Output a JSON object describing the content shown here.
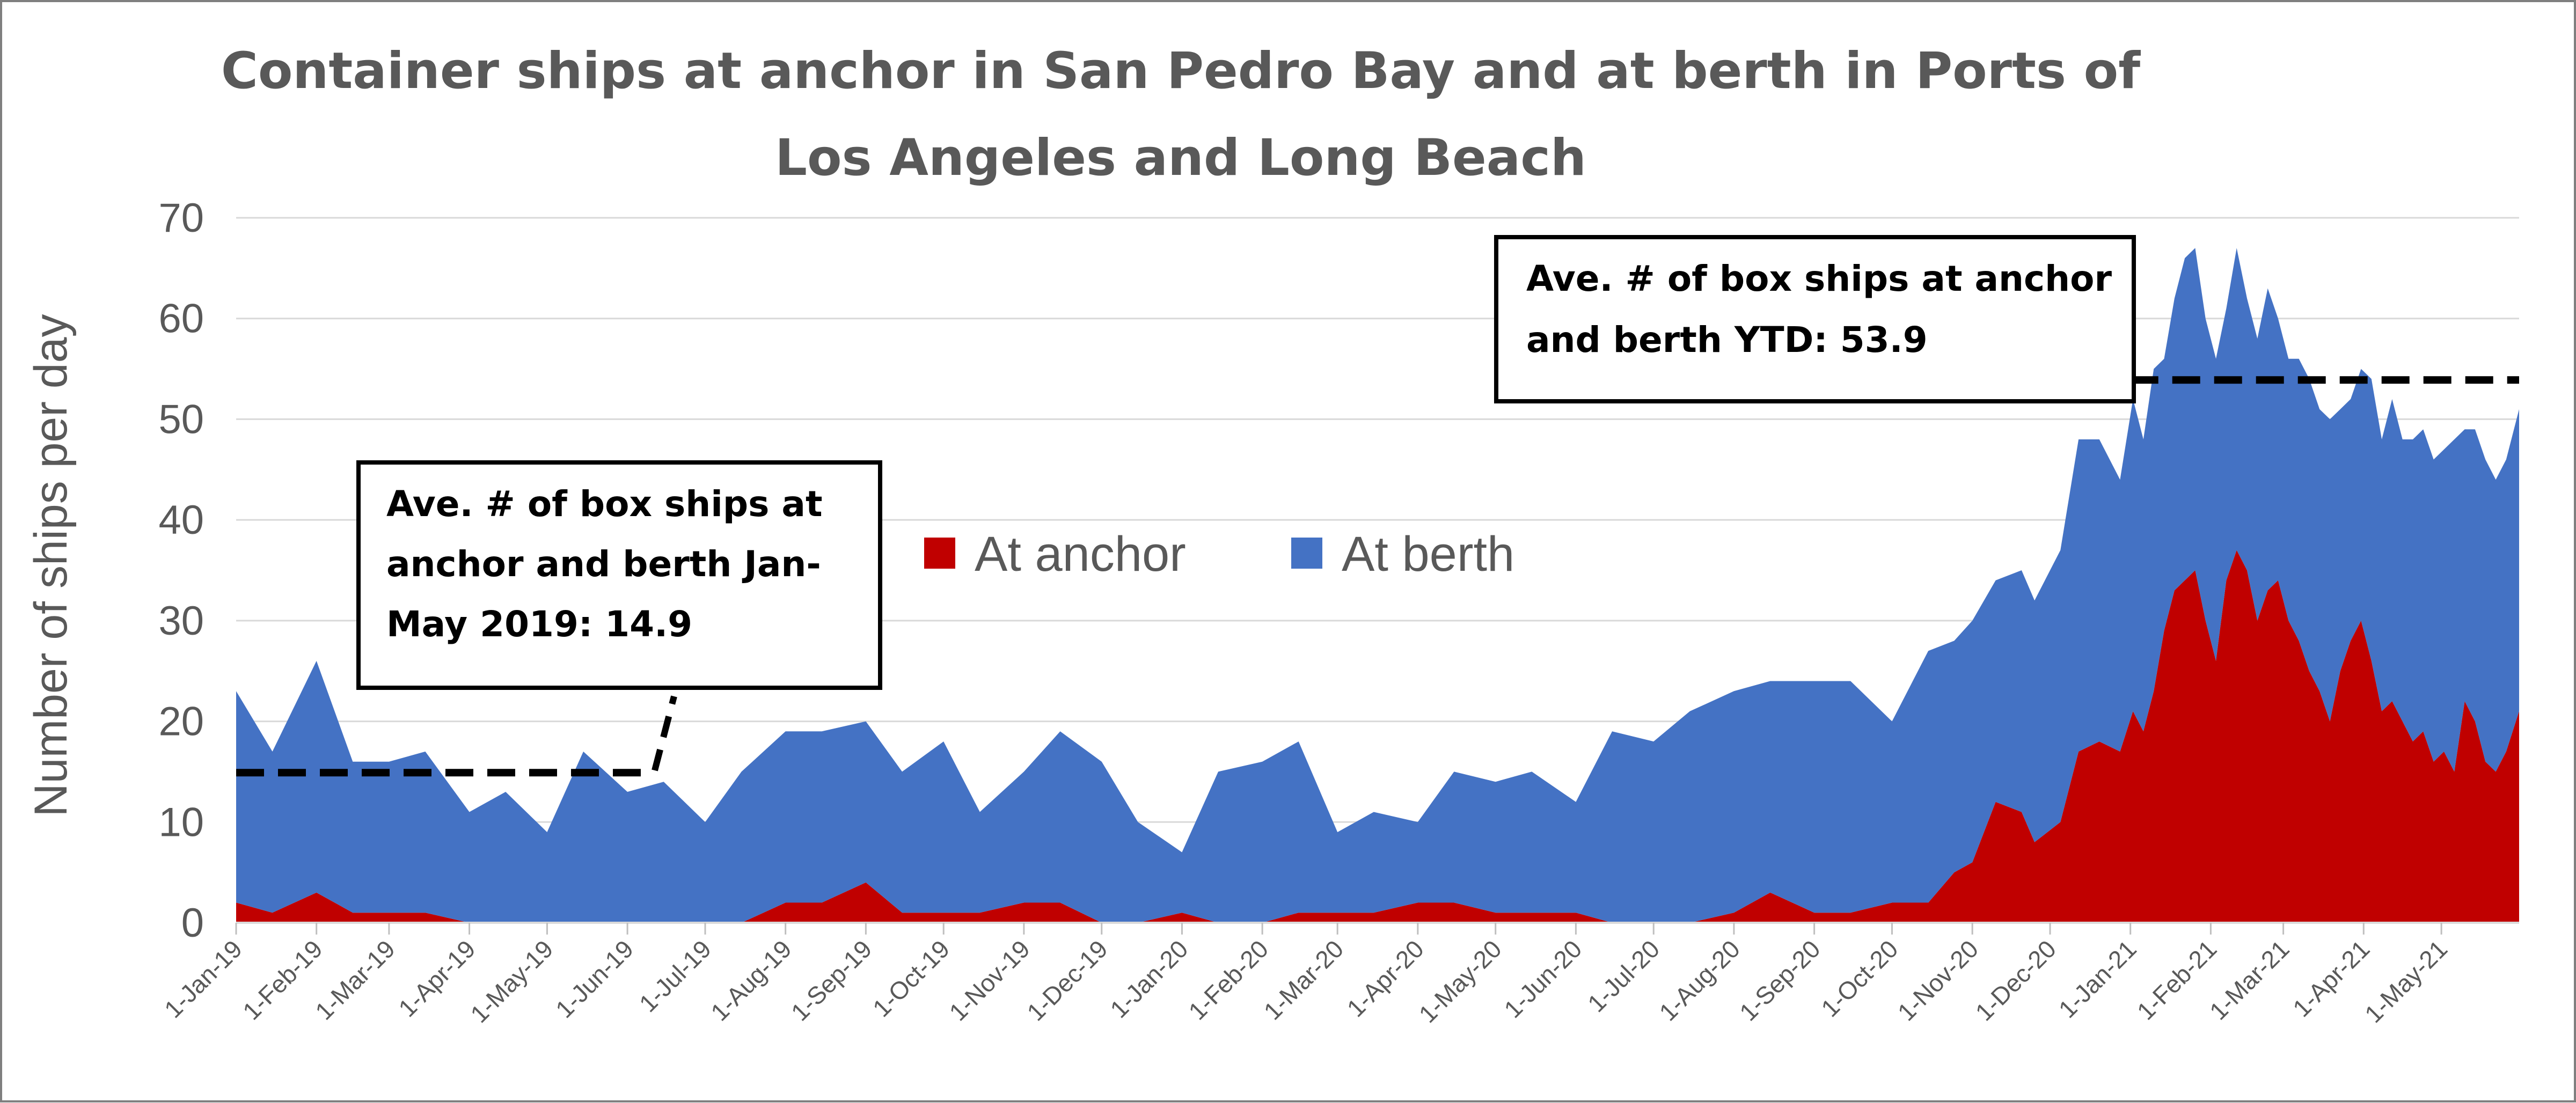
{
  "chart_data": {
    "type": "area",
    "stacked": true,
    "title_lines": [
      "Container ships at anchor in San Pedro Bay and at berth in Ports of",
      "Los Angeles and Long Beach"
    ],
    "ylabel": "Number of ships per day",
    "ylim": [
      0,
      70
    ],
    "y_ticks": [
      "0",
      "10",
      "20",
      "30",
      "40",
      "50",
      "60",
      "70"
    ],
    "x_tick_labels": [
      "1-Jan-19",
      "1-Feb-19",
      "1-Mar-19",
      "1-Apr-19",
      "1-May-19",
      "1-Jun-19",
      "1-Jul-19",
      "1-Aug-19",
      "1-Sep-19",
      "1-Oct-19",
      "1-Nov-19",
      "1-Dec-19",
      "1-Jan-20",
      "1-Feb-20",
      "1-Mar-20",
      "1-Apr-20",
      "1-May-20",
      "1-Jun-20",
      "1-Jul-20",
      "1-Aug-20",
      "1-Sep-20",
      "1-Oct-20",
      "1-Nov-20",
      "1-Dec-20",
      "1-Jan-21",
      "1-Feb-21",
      "1-Mar-21",
      "1-Apr-21",
      "1-May-21"
    ],
    "x_range": [
      "2019-01-01",
      "2021-05-31"
    ],
    "grid": true,
    "legend": {
      "placement": "center",
      "entries": [
        {
          "name": "At anchor",
          "color": "#c00000"
        },
        {
          "name": "At berth",
          "color": "#4472c4"
        }
      ]
    },
    "series": [
      {
        "name": "At anchor",
        "color": "#c00000",
        "points": [
          [
            "2019-01-01",
            2
          ],
          [
            "2019-01-15",
            1
          ],
          [
            "2019-02-01",
            3
          ],
          [
            "2019-02-15",
            1
          ],
          [
            "2019-03-01",
            1
          ],
          [
            "2019-03-15",
            1
          ],
          [
            "2019-04-01",
            0
          ],
          [
            "2019-04-15",
            0
          ],
          [
            "2019-05-01",
            0
          ],
          [
            "2019-05-15",
            0
          ],
          [
            "2019-06-01",
            0
          ],
          [
            "2019-06-15",
            0
          ],
          [
            "2019-07-01",
            0
          ],
          [
            "2019-07-15",
            0
          ],
          [
            "2019-08-01",
            2
          ],
          [
            "2019-08-15",
            2
          ],
          [
            "2019-09-01",
            4
          ],
          [
            "2019-09-15",
            1
          ],
          [
            "2019-10-01",
            1
          ],
          [
            "2019-10-15",
            1
          ],
          [
            "2019-11-01",
            2
          ],
          [
            "2019-11-15",
            2
          ],
          [
            "2019-12-01",
            0
          ],
          [
            "2019-12-15",
            0
          ],
          [
            "2020-01-01",
            1
          ],
          [
            "2020-01-15",
            0
          ],
          [
            "2020-02-01",
            0
          ],
          [
            "2020-02-15",
            1
          ],
          [
            "2020-03-01",
            1
          ],
          [
            "2020-03-15",
            1
          ],
          [
            "2020-04-01",
            2
          ],
          [
            "2020-04-15",
            2
          ],
          [
            "2020-05-01",
            1
          ],
          [
            "2020-05-15",
            1
          ],
          [
            "2020-06-01",
            1
          ],
          [
            "2020-06-15",
            0
          ],
          [
            "2020-07-01",
            0
          ],
          [
            "2020-07-15",
            0
          ],
          [
            "2020-08-01",
            1
          ],
          [
            "2020-08-15",
            3
          ],
          [
            "2020-09-01",
            1
          ],
          [
            "2020-09-15",
            1
          ],
          [
            "2020-10-01",
            2
          ],
          [
            "2020-10-15",
            2
          ],
          [
            "2020-10-25",
            5
          ],
          [
            "2020-11-01",
            6
          ],
          [
            "2020-11-10",
            12
          ],
          [
            "2020-11-20",
            11
          ],
          [
            "2020-11-25",
            8
          ],
          [
            "2020-12-05",
            10
          ],
          [
            "2020-12-12",
            17
          ],
          [
            "2020-12-20",
            18
          ],
          [
            "2020-12-28",
            17
          ],
          [
            "2021-01-02",
            21
          ],
          [
            "2021-01-06",
            19
          ],
          [
            "2021-01-10",
            23
          ],
          [
            "2021-01-14",
            29
          ],
          [
            "2021-01-18",
            33
          ],
          [
            "2021-01-22",
            34
          ],
          [
            "2021-01-26",
            35
          ],
          [
            "2021-01-30",
            30
          ],
          [
            "2021-02-03",
            26
          ],
          [
            "2021-02-07",
            34
          ],
          [
            "2021-02-11",
            37
          ],
          [
            "2021-02-15",
            35
          ],
          [
            "2021-02-19",
            30
          ],
          [
            "2021-02-23",
            33
          ],
          [
            "2021-02-27",
            34
          ],
          [
            "2021-03-03",
            30
          ],
          [
            "2021-03-07",
            28
          ],
          [
            "2021-03-11",
            25
          ],
          [
            "2021-03-15",
            23
          ],
          [
            "2021-03-19",
            20
          ],
          [
            "2021-03-23",
            25
          ],
          [
            "2021-03-27",
            28
          ],
          [
            "2021-03-31",
            30
          ],
          [
            "2021-04-04",
            26
          ],
          [
            "2021-04-08",
            21
          ],
          [
            "2021-04-12",
            22
          ],
          [
            "2021-04-16",
            20
          ],
          [
            "2021-04-20",
            18
          ],
          [
            "2021-04-24",
            19
          ],
          [
            "2021-04-28",
            16
          ],
          [
            "2021-05-02",
            17
          ],
          [
            "2021-05-06",
            15
          ],
          [
            "2021-05-10",
            22
          ],
          [
            "2021-05-14",
            20
          ],
          [
            "2021-05-18",
            16
          ],
          [
            "2021-05-22",
            15
          ],
          [
            "2021-05-26",
            17
          ],
          [
            "2021-05-31",
            21
          ]
        ]
      },
      {
        "name": "At berth",
        "color": "#4472c4",
        "points": [
          [
            "2019-01-01",
            21
          ],
          [
            "2019-01-15",
            16
          ],
          [
            "2019-02-01",
            23
          ],
          [
            "2019-02-15",
            15
          ],
          [
            "2019-03-01",
            15
          ],
          [
            "2019-03-15",
            16
          ],
          [
            "2019-04-01",
            11
          ],
          [
            "2019-04-15",
            13
          ],
          [
            "2019-05-01",
            9
          ],
          [
            "2019-05-15",
            17
          ],
          [
            "2019-06-01",
            13
          ],
          [
            "2019-06-15",
            14
          ],
          [
            "2019-07-01",
            10
          ],
          [
            "2019-07-15",
            15
          ],
          [
            "2019-08-01",
            17
          ],
          [
            "2019-08-15",
            17
          ],
          [
            "2019-09-01",
            16
          ],
          [
            "2019-09-15",
            14
          ],
          [
            "2019-10-01",
            17
          ],
          [
            "2019-10-15",
            10
          ],
          [
            "2019-11-01",
            13
          ],
          [
            "2019-11-15",
            17
          ],
          [
            "2019-12-01",
            16
          ],
          [
            "2019-12-15",
            10
          ],
          [
            "2020-01-01",
            6
          ],
          [
            "2020-01-15",
            15
          ],
          [
            "2020-02-01",
            16
          ],
          [
            "2020-02-15",
            17
          ],
          [
            "2020-03-01",
            8
          ],
          [
            "2020-03-15",
            10
          ],
          [
            "2020-04-01",
            8
          ],
          [
            "2020-04-15",
            13
          ],
          [
            "2020-05-01",
            13
          ],
          [
            "2020-05-15",
            14
          ],
          [
            "2020-06-01",
            11
          ],
          [
            "2020-06-15",
            19
          ],
          [
            "2020-07-01",
            18
          ],
          [
            "2020-07-15",
            21
          ],
          [
            "2020-08-01",
            22
          ],
          [
            "2020-08-15",
            21
          ],
          [
            "2020-09-01",
            23
          ],
          [
            "2020-09-15",
            23
          ],
          [
            "2020-10-01",
            18
          ],
          [
            "2020-10-15",
            25
          ],
          [
            "2020-10-25",
            23
          ],
          [
            "2020-11-01",
            24
          ],
          [
            "2020-11-10",
            22
          ],
          [
            "2020-11-20",
            24
          ],
          [
            "2020-11-25",
            24
          ],
          [
            "2020-12-05",
            27
          ],
          [
            "2020-12-12",
            31
          ],
          [
            "2020-12-20",
            30
          ],
          [
            "2020-12-28",
            27
          ],
          [
            "2021-01-02",
            31
          ],
          [
            "2021-01-06",
            29
          ],
          [
            "2021-01-10",
            32
          ],
          [
            "2021-01-14",
            27
          ],
          [
            "2021-01-18",
            29
          ],
          [
            "2021-01-22",
            32
          ],
          [
            "2021-01-26",
            32
          ],
          [
            "2021-01-30",
            30
          ],
          [
            "2021-02-03",
            30
          ],
          [
            "2021-02-07",
            27
          ],
          [
            "2021-02-11",
            30
          ],
          [
            "2021-02-15",
            27
          ],
          [
            "2021-02-19",
            28
          ],
          [
            "2021-02-23",
            30
          ],
          [
            "2021-02-27",
            26
          ],
          [
            "2021-03-03",
            26
          ],
          [
            "2021-03-07",
            28
          ],
          [
            "2021-03-11",
            29
          ],
          [
            "2021-03-15",
            28
          ],
          [
            "2021-03-19",
            30
          ],
          [
            "2021-03-23",
            26
          ],
          [
            "2021-03-27",
            24
          ],
          [
            "2021-03-31",
            25
          ],
          [
            "2021-04-04",
            28
          ],
          [
            "2021-04-08",
            27
          ],
          [
            "2021-04-12",
            30
          ],
          [
            "2021-04-16",
            28
          ],
          [
            "2021-04-20",
            30
          ],
          [
            "2021-04-24",
            30
          ],
          [
            "2021-04-28",
            30
          ],
          [
            "2021-05-02",
            30
          ],
          [
            "2021-05-06",
            33
          ],
          [
            "2021-05-10",
            27
          ],
          [
            "2021-05-14",
            29
          ],
          [
            "2021-05-18",
            30
          ],
          [
            "2021-05-22",
            29
          ],
          [
            "2021-05-26",
            29
          ],
          [
            "2021-05-31",
            30
          ]
        ]
      }
    ],
    "average_lines": [
      {
        "label": "Ave. 2019",
        "value": 14.9,
        "x_start": "2019-01-01",
        "x_end": "2019-06-10"
      },
      {
        "label": "Ave. YTD",
        "value": 53.9,
        "x_start": "2021-01-01",
        "x_end": "2021-05-31"
      }
    ],
    "annotations": [
      {
        "lines": [
          "Ave. # of box ships at",
          "anchor and berth Jan-",
          "May 2019:  14.9"
        ]
      },
      {
        "lines": [
          "Ave. # of box ships at anchor",
          "and berth YTD: 53.9"
        ]
      }
    ]
  }
}
